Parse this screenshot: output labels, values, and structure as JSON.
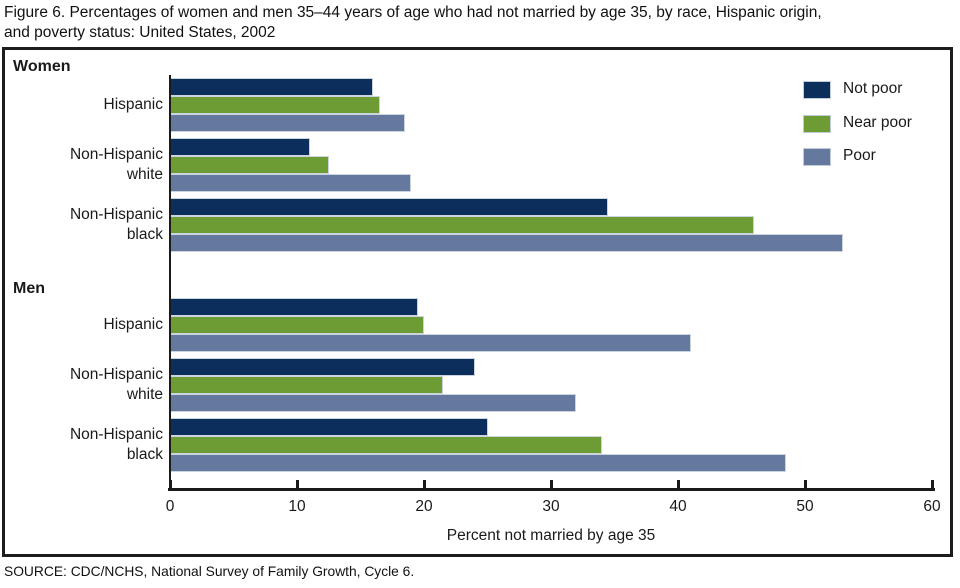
{
  "figure": {
    "title_line1": "Figure 6. Percentages of women and men 35–44 years of age who had not married by age 35, by race, Hispanic origin,",
    "title_line2": "and poverty status: United States, 2002",
    "source": "SOURCE: CDC/NCHS, National Survey of Family Growth, Cycle 6."
  },
  "colors": {
    "not_poor": "#0b2e5c",
    "near_poor": "#6d9c34",
    "poor": "#65799e",
    "axis": "#1a1a1a",
    "bar_border": "#ccd4df"
  },
  "chart_data": {
    "type": "bar",
    "orientation": "horizontal",
    "title": "Percentages of women and men 35–44 years of age who had not married by age 35, by race, Hispanic origin, and poverty status: United States, 2002",
    "xlabel": "Percent not married by age 35",
    "xlim": [
      0,
      60
    ],
    "xticks": [
      0,
      10,
      20,
      30,
      40,
      50,
      60
    ],
    "grid": false,
    "legend_position": "top-right",
    "legend": [
      {
        "key": "not_poor",
        "label": "Not poor"
      },
      {
        "key": "near_poor",
        "label": "Near poor"
      },
      {
        "key": "poor",
        "label": "Poor"
      }
    ],
    "sections": [
      {
        "label": "Women",
        "groups": [
          {
            "label_lines": [
              "Hispanic"
            ],
            "values": {
              "not_poor": 16,
              "near_poor": 16.5,
              "poor": 18.5
            }
          },
          {
            "label_lines": [
              "Non-Hispanic",
              "white"
            ],
            "values": {
              "not_poor": 11,
              "near_poor": 12.5,
              "poor": 19
            }
          },
          {
            "label_lines": [
              "Non-Hispanic",
              "black"
            ],
            "values": {
              "not_poor": 34.5,
              "near_poor": 46,
              "poor": 53
            }
          }
        ]
      },
      {
        "label": "Men",
        "groups": [
          {
            "label_lines": [
              "Hispanic"
            ],
            "values": {
              "not_poor": 19.5,
              "near_poor": 20,
              "poor": 41
            }
          },
          {
            "label_lines": [
              "Non-Hispanic",
              "white"
            ],
            "values": {
              "not_poor": 24,
              "near_poor": 21.5,
              "poor": 32
            }
          },
          {
            "label_lines": [
              "Non-Hispanic",
              "black"
            ],
            "values": {
              "not_poor": 25,
              "near_poor": 34,
              "poor": 48.5
            }
          }
        ]
      }
    ]
  }
}
